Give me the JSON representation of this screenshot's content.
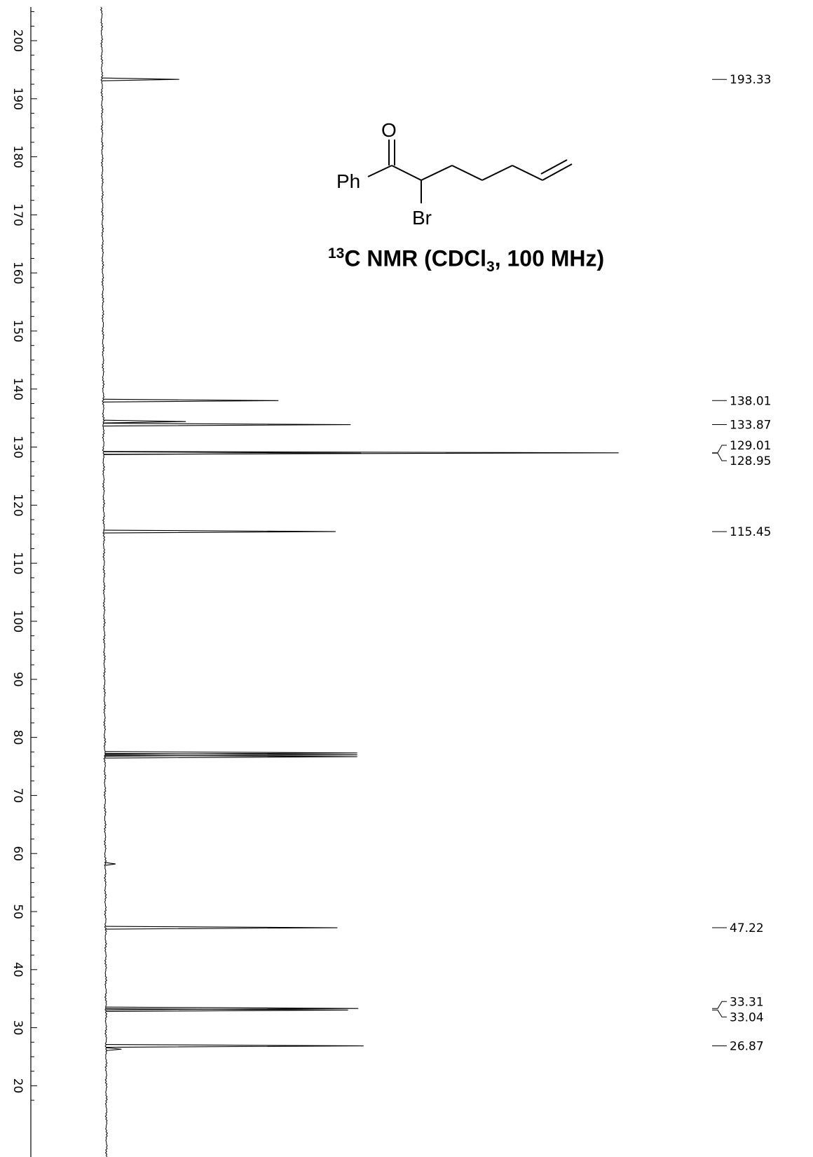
{
  "chart_data": {
    "type": "line",
    "orientation": "vertical",
    "xlabel": "",
    "ylabel": "",
    "axis_range": [
      17.5,
      205
    ],
    "axis_reversed": true,
    "axis_ticks": [
      200,
      190,
      180,
      170,
      160,
      150,
      140,
      130,
      120,
      110,
      100,
      90,
      80,
      70,
      60,
      50,
      40,
      30,
      20
    ],
    "peaks": [
      {
        "shift": 193.33,
        "intensity": 0.15
      },
      {
        "shift": 138.01,
        "intensity": 0.34
      },
      {
        "shift": 134.4,
        "intensity": 0.16
      },
      {
        "shift": 133.87,
        "intensity": 0.48
      },
      {
        "shift": 129.01,
        "intensity": 1.0
      },
      {
        "shift": 128.95,
        "intensity": 0.5
      },
      {
        "shift": 115.45,
        "intensity": 0.45
      },
      {
        "shift": 77.32,
        "intensity": 0.49
      },
      {
        "shift": 77.0,
        "intensity": 0.49
      },
      {
        "shift": 76.68,
        "intensity": 0.49
      },
      {
        "shift": 58.2,
        "intensity": 0.02
      },
      {
        "shift": 47.22,
        "intensity": 0.45
      },
      {
        "shift": 33.31,
        "intensity": 0.49
      },
      {
        "shift": 33.04,
        "intensity": 0.47
      },
      {
        "shift": 26.87,
        "intensity": 0.5
      },
      {
        "shift": 26.3,
        "intensity": 0.03
      }
    ],
    "peak_labels": [
      "193.33",
      "138.01",
      "133.87",
      "129.01",
      "128.95",
      "115.45",
      "47.22",
      "33.31",
      "33.04",
      "26.87"
    ]
  },
  "structure": {
    "oxygen": "O",
    "phenyl": "Ph",
    "bromine": "Br"
  },
  "title": {
    "mass": "13",
    "prefix": "C NMR (CDCl",
    "subscript": "3",
    "suffix": ", 100 MHz)"
  }
}
